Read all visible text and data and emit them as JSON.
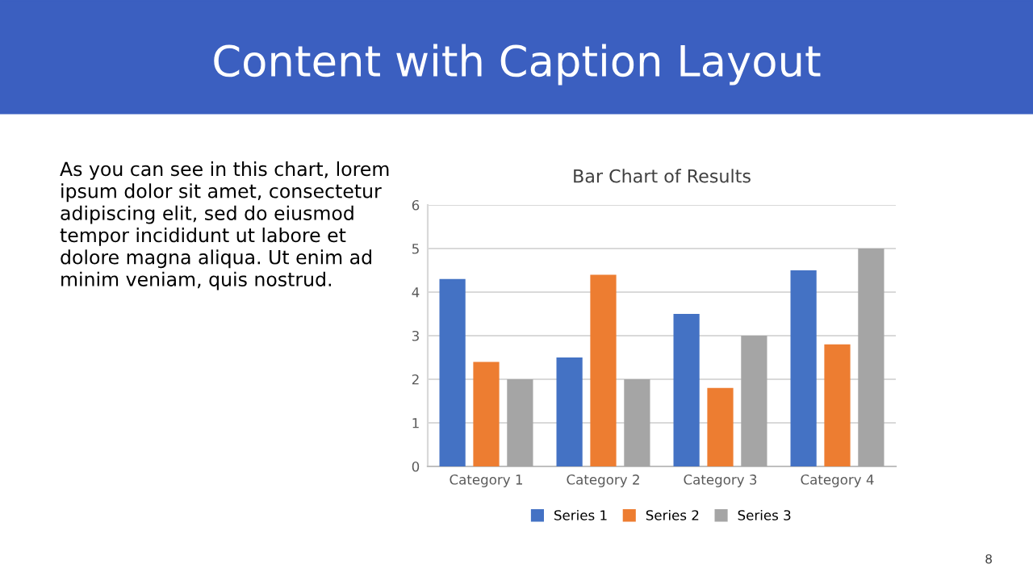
{
  "chart_data": {
    "type": "bar",
    "title": "Bar Chart of Results",
    "categories": [
      "Category 1",
      "Category 2",
      "Category 3",
      "Category 4"
    ],
    "series": [
      {
        "name": "Series 1",
        "color": "#4472c4",
        "values": [
          4.3,
          2.5,
          3.5,
          4.5
        ]
      },
      {
        "name": "Series 2",
        "color": "#ed7d31",
        "values": [
          2.4,
          4.4,
          1.8,
          2.8
        ]
      },
      {
        "name": "Series 3",
        "color": "#a5a5a5",
        "values": [
          2,
          2,
          3,
          5
        ]
      }
    ],
    "ylim": [
      0,
      6
    ],
    "yticks": [
      0,
      1,
      2,
      3,
      4,
      5,
      6
    ],
    "grid": "y",
    "legend": "bottom",
    "annotations": [
      "Content with Caption Layout",
      "As you can see in this chart, lorem\nipsum dolor sit amet, consectetur\nadipiscing elit, sed do eiusmod\ntempor incididunt ut labore et\ndolore magna aliqua. Ut enim ad\nminim veniam, quis nostrud.",
      "8"
    ]
  }
}
